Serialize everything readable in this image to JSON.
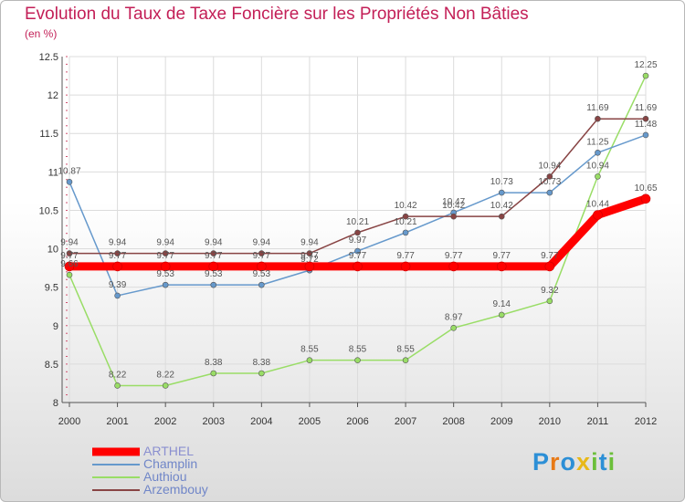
{
  "title": "Evolution du Taux de Taxe Foncière sur les Propriétés Non Bâties",
  "unit": "(en %)",
  "logo": {
    "letters": [
      "P",
      "r",
      "o",
      "x",
      "i",
      "t",
      "i"
    ],
    "colors": [
      "#2c8fd6",
      "#e87a17",
      "#2c8fd6",
      "#e8b817",
      "#6cbf3a",
      "#2c8fd6",
      "#6cbf3a"
    ]
  },
  "chart_data": {
    "type": "line",
    "x": [
      "2000",
      "2001",
      "2002",
      "2003",
      "2004",
      "2005",
      "2006",
      "2007",
      "2008",
      "2009",
      "2010",
      "2011",
      "2012"
    ],
    "ylim": [
      8,
      12.5
    ],
    "yticks": [
      "8",
      "8.5",
      "9",
      "9.5",
      "10",
      "10.5",
      "11",
      "11.5",
      "12",
      "12.5"
    ],
    "series": [
      {
        "name": "ARTHEL",
        "color": "#ff0000",
        "values": [
          9.77,
          9.77,
          9.77,
          9.77,
          9.77,
          9.77,
          9.77,
          9.77,
          9.77,
          9.77,
          9.77,
          10.44,
          10.65
        ],
        "labels": [
          "9.77",
          "9.77",
          "9.77",
          "9.77",
          "9.77",
          "9.77",
          "9.77",
          "9.77",
          "9.77",
          "9.77",
          "9.77",
          "10.44",
          "10.65"
        ]
      },
      {
        "name": "Champlin",
        "color": "#6699cc",
        "values": [
          10.87,
          9.39,
          9.53,
          9.53,
          9.53,
          9.72,
          9.97,
          10.21,
          10.47,
          10.73,
          10.73,
          11.25,
          11.48
        ],
        "labels": [
          "10.87",
          "9.39",
          "9.53",
          "9.53",
          "9.53",
          "9.72",
          "9.97",
          "10.21",
          "10.47",
          "10.73",
          "10.73",
          "11.25",
          "11.48"
        ]
      },
      {
        "name": "Authiou",
        "color": "#99dd66",
        "values": [
          9.66,
          8.22,
          8.22,
          8.38,
          8.38,
          8.55,
          8.55,
          8.55,
          8.97,
          9.14,
          9.32,
          10.94,
          12.25
        ],
        "labels": [
          "9.66",
          "8.22",
          "8.22",
          "8.38",
          "8.38",
          "8.55",
          "8.55",
          "8.55",
          "8.97",
          "9.14",
          "9.32",
          "10.94",
          "12.25"
        ]
      },
      {
        "name": "Arzembouy",
        "color": "#884444",
        "values": [
          9.94,
          9.94,
          9.94,
          9.94,
          9.94,
          9.94,
          10.21,
          10.42,
          10.42,
          10.42,
          10.94,
          11.69,
          11.69
        ],
        "labels": [
          "9.94",
          "9.94",
          "9.94",
          "9.94",
          "9.94",
          "9.94",
          "10.21",
          "10.42",
          "10.42",
          "10.42",
          "10.94",
          "11.69",
          "11.69"
        ]
      }
    ]
  }
}
